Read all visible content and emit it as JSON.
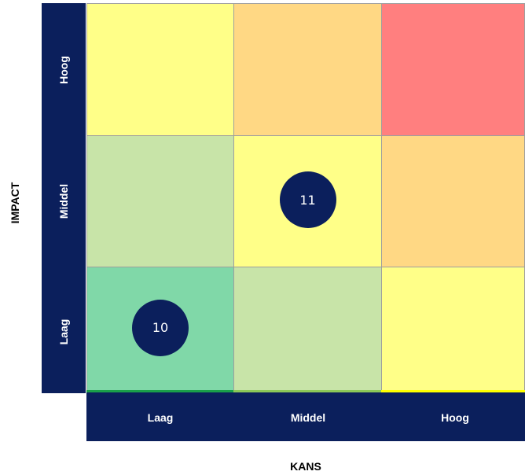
{
  "axes": {
    "y_title": "IMPACT",
    "x_title": "KANS",
    "y_levels": [
      "Hoog",
      "Middel",
      "Laag"
    ],
    "x_levels": [
      "Laag",
      "Middel",
      "Hoog"
    ]
  },
  "grid": [
    [
      "#ffff88",
      "#ffd884",
      "#ff7f7f"
    ],
    [
      "#c8e4a8",
      "#ffff88",
      "#ffd884"
    ],
    [
      "#80d8a8",
      "#c8e4a8",
      "#ffff88"
    ]
  ],
  "markers": [
    {
      "label": "11",
      "impact": "Middel",
      "kans": "Middel"
    },
    {
      "label": "10",
      "impact": "Laag",
      "kans": "Laag"
    }
  ],
  "colors": {
    "band": "#0b1f5c",
    "grid_border": "#9e9e9e",
    "bottom_line": [
      "#1aa04a",
      "#8cc858",
      "#ffff00"
    ]
  }
}
